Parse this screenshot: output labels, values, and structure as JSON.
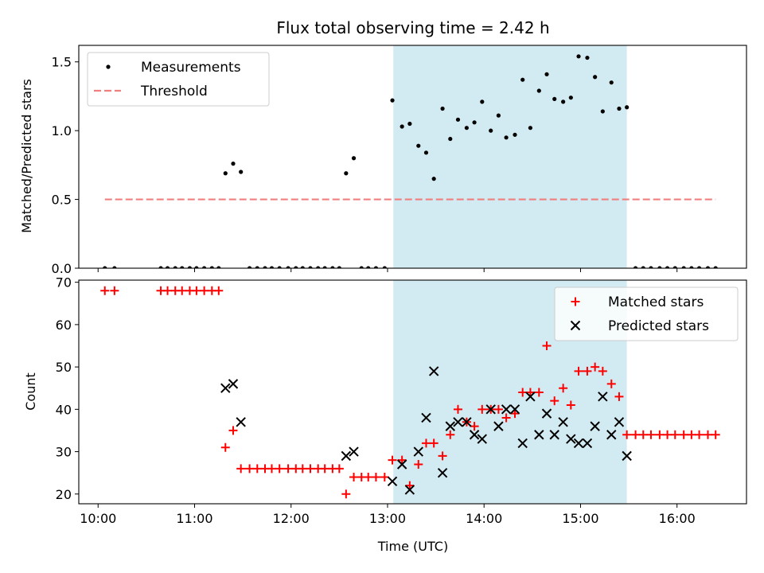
{
  "figure": {
    "title": "Flux total observing time = 2.42 h",
    "xlabel": "Time (UTC)",
    "xticks": [
      10,
      11,
      12,
      13,
      14,
      15,
      16
    ],
    "xtick_labels": [
      "10:00",
      "11:00",
      "12:00",
      "13:00",
      "14:00",
      "15:00",
      "16:00"
    ],
    "xlim": [
      9.8,
      16.72
    ],
    "shaded_span": {
      "start": 13.06,
      "end": 15.48,
      "color": "#add8e6"
    }
  },
  "chart_data": [
    {
      "type": "scatter",
      "ylabel": "Matched/Predicted stars",
      "ylim": [
        0,
        1.62
      ],
      "yticks": [
        0.0,
        0.5,
        1.0,
        1.5
      ],
      "ytick_labels": [
        "0.0",
        "0.5",
        "1.0",
        "1.5"
      ],
      "legend_position": "top-left",
      "series": [
        {
          "name": "Measurements",
          "marker": "dot",
          "color": "#000000",
          "x": [
            10.07,
            10.17,
            10.65,
            10.72,
            10.8,
            10.87,
            10.95,
            11.02,
            11.1,
            11.18,
            11.25,
            11.32,
            11.4,
            11.48,
            11.57,
            11.65,
            11.73,
            11.8,
            11.88,
            11.97,
            12.05,
            12.12,
            12.2,
            12.28,
            12.35,
            12.43,
            12.5,
            12.57,
            12.65,
            12.73,
            12.8,
            12.88,
            12.97,
            13.05,
            13.15,
            13.23,
            13.32,
            13.4,
            13.48,
            13.57,
            13.65,
            13.73,
            13.82,
            13.9,
            13.98,
            14.07,
            14.15,
            14.23,
            14.32,
            14.4,
            14.48,
            14.57,
            14.65,
            14.73,
            14.82,
            14.9,
            14.98,
            15.07,
            15.15,
            15.23,
            15.32,
            15.4,
            15.48,
            15.57,
            15.65,
            15.73,
            15.82,
            15.9,
            15.98,
            16.07,
            16.15,
            16.23,
            16.32,
            16.4
          ],
          "y": [
            0,
            0,
            0,
            0,
            0,
            0,
            0,
            0,
            0,
            0,
            0,
            0.69,
            0.76,
            0.7,
            0,
            0,
            0,
            0,
            0,
            0,
            0,
            0,
            0,
            0,
            0,
            0,
            0,
            0.69,
            0.8,
            0,
            0,
            0,
            0,
            1.22,
            1.03,
            1.05,
            0.89,
            0.84,
            0.65,
            1.16,
            0.94,
            1.08,
            1.02,
            1.06,
            1.21,
            1.0,
            1.11,
            0.95,
            0.97,
            1.37,
            1.02,
            1.29,
            1.41,
            1.23,
            1.21,
            1.24,
            1.54,
            1.53,
            1.39,
            1.14,
            1.35,
            1.16,
            1.17,
            0,
            0,
            0,
            0,
            0,
            0,
            0,
            0,
            0,
            0,
            0
          ]
        },
        {
          "name": "Threshold",
          "marker": "dashed-line",
          "color": "#f08080",
          "x": [
            10.07,
            16.4
          ],
          "y": [
            0.5,
            0.5
          ]
        }
      ]
    },
    {
      "type": "scatter",
      "ylabel": "Count",
      "ylim": [
        17.7,
        70.5
      ],
      "yticks": [
        20,
        30,
        40,
        50,
        60,
        70
      ],
      "ytick_labels": [
        "20",
        "30",
        "40",
        "50",
        "60",
        "70"
      ],
      "legend_position": "top-right",
      "series": [
        {
          "name": "Matched stars",
          "marker": "plus",
          "color": "#ff0000",
          "x": [
            10.07,
            10.17,
            10.65,
            10.72,
            10.8,
            10.87,
            10.95,
            11.02,
            11.1,
            11.18,
            11.25,
            11.32,
            11.4,
            11.48,
            11.57,
            11.65,
            11.73,
            11.8,
            11.88,
            11.97,
            12.05,
            12.12,
            12.2,
            12.28,
            12.35,
            12.43,
            12.5,
            12.57,
            12.65,
            12.73,
            12.8,
            12.88,
            12.97,
            13.05,
            13.15,
            13.23,
            13.32,
            13.4,
            13.48,
            13.57,
            13.65,
            13.73,
            13.82,
            13.9,
            13.98,
            14.07,
            14.15,
            14.23,
            14.32,
            14.4,
            14.48,
            14.57,
            14.65,
            14.73,
            14.82,
            14.9,
            14.98,
            15.07,
            15.15,
            15.23,
            15.32,
            15.4,
            15.48,
            15.57,
            15.65,
            15.73,
            15.82,
            15.9,
            15.98,
            16.07,
            16.15,
            16.23,
            16.32,
            16.4
          ],
          "y": [
            68,
            68,
            68,
            68,
            68,
            68,
            68,
            68,
            68,
            68,
            68,
            31,
            35,
            26,
            26,
            26,
            26,
            26,
            26,
            26,
            26,
            26,
            26,
            26,
            26,
            26,
            26,
            20,
            24,
            24,
            24,
            24,
            24,
            28,
            28,
            22,
            27,
            32,
            32,
            29,
            34,
            40,
            37,
            36,
            40,
            40,
            40,
            38,
            39,
            44,
            44,
            44,
            55,
            42,
            45,
            41,
            49,
            49,
            50,
            49,
            46,
            43,
            34,
            34,
            34,
            34,
            34,
            34,
            34,
            34,
            34,
            34,
            34,
            34
          ]
        },
        {
          "name": "Predicted stars",
          "marker": "x",
          "color": "#000000",
          "x": [
            11.32,
            11.4,
            11.48,
            12.57,
            12.65,
            13.05,
            13.15,
            13.23,
            13.32,
            13.4,
            13.48,
            13.57,
            13.65,
            13.73,
            13.82,
            13.9,
            13.98,
            14.07,
            14.15,
            14.23,
            14.32,
            14.4,
            14.48,
            14.57,
            14.65,
            14.73,
            14.82,
            14.9,
            14.98,
            15.07,
            15.15,
            15.23,
            15.32,
            15.4,
            15.48
          ],
          "y": [
            45,
            46,
            37,
            29,
            30,
            23,
            27,
            21,
            30,
            38,
            49,
            25,
            36,
            37,
            37,
            34,
            33,
            40,
            36,
            40,
            40,
            32,
            43,
            34,
            39,
            34,
            37,
            33,
            32,
            32,
            36,
            43,
            34,
            37,
            29
          ]
        }
      ]
    }
  ]
}
